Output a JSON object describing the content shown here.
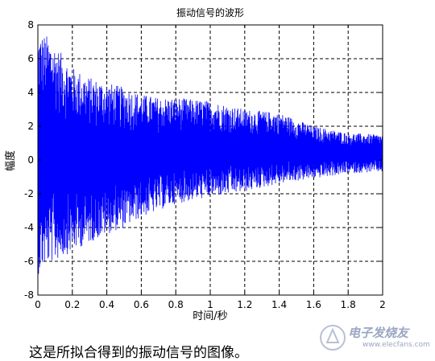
{
  "chart_data": {
    "type": "line",
    "title": "振动信号的波形",
    "xlabel": "时间/秒",
    "ylabel": "幅度",
    "xlim": [
      0,
      2
    ],
    "ylim": [
      -8,
      8
    ],
    "grid": true,
    "xticks": [
      "0",
      "0.2",
      "0.4",
      "0.6",
      "0.8",
      "1",
      "1.2",
      "1.4",
      "1.6",
      "1.8",
      "2"
    ],
    "yticks": [
      "8",
      "6",
      "4",
      "2",
      "0",
      "-2",
      "-4",
      "-6",
      "-8"
    ],
    "series_color": "#0000ff",
    "envelope": {
      "x": [
        0.0,
        0.05,
        0.1,
        0.2,
        0.3,
        0.4,
        0.5,
        0.6,
        0.7,
        0.8,
        0.9,
        1.0,
        1.2,
        1.4,
        1.6,
        1.8,
        2.0
      ],
      "upper": [
        7.5,
        7.4,
        6.8,
        5.5,
        4.9,
        4.6,
        4.3,
        3.9,
        3.7,
        3.7,
        3.6,
        3.5,
        3.0,
        2.8,
        2.0,
        1.6,
        1.5
      ],
      "lower": [
        -6.8,
        -6.2,
        -6.0,
        -5.4,
        -4.9,
        -4.4,
        -4.0,
        -3.4,
        -3.0,
        -2.6,
        -2.4,
        -2.2,
        -1.9,
        -1.4,
        -1.1,
        -0.8,
        -0.7
      ]
    }
  },
  "caption": "这是所拟合得到的振动信号的图像。",
  "watermark": {
    "text": "电子发烧友",
    "url": "www.elecfans.com"
  }
}
